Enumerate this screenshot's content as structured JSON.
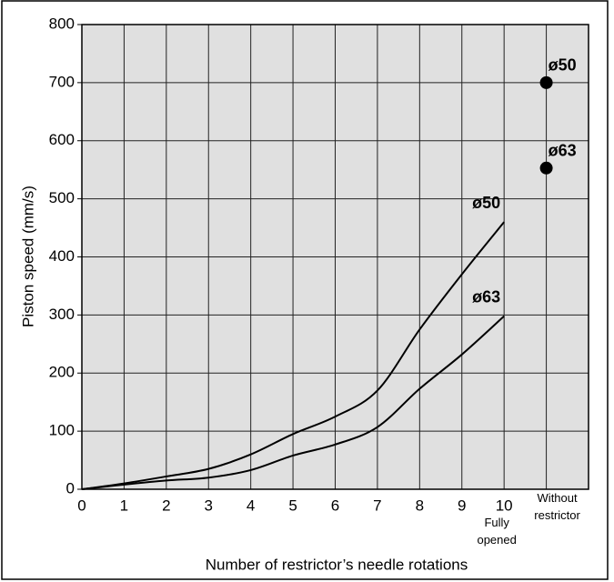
{
  "chart_data": {
    "type": "line",
    "x_label": "Number of restrictor’s needle rotations",
    "y_label": "Piston speed (mm/s)",
    "xlim": [
      0,
      12
    ],
    "xticks": [
      0,
      1,
      2,
      3,
      4,
      5,
      6,
      7,
      8,
      9,
      10,
      {
        "value": 11,
        "label": "Without restrictor"
      }
    ],
    "ylim": [
      0,
      800
    ],
    "yticks": [
      0,
      100,
      200,
      300,
      400,
      500,
      600,
      700,
      800
    ],
    "grid": true,
    "annotation": "Fully opened",
    "series": [
      {
        "name": "ø50",
        "color": "#000000",
        "x": [
          0,
          1,
          2,
          3,
          4,
          5,
          6,
          7,
          8,
          9,
          10
        ],
        "values": [
          0,
          10,
          22,
          35,
          60,
          95,
          125,
          170,
          275,
          370,
          460
        ]
      },
      {
        "name": "ø63",
        "color": "#000000",
        "x": [
          0,
          1,
          2,
          3,
          4,
          5,
          6,
          7,
          8,
          9,
          10
        ],
        "values": [
          0,
          8,
          15,
          20,
          33,
          58,
          77,
          107,
          173,
          232,
          298
        ]
      }
    ],
    "points": [
      {
        "name": "ø50",
        "x": 11,
        "value": 700
      },
      {
        "name": "ø63",
        "x": 11,
        "value": 553
      }
    ]
  }
}
